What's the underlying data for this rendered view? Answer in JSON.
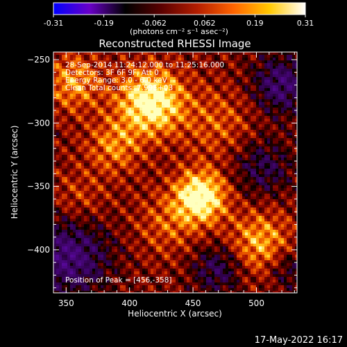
{
  "colorbar": {
    "ticks": [
      "-0.31",
      "-0.19",
      "-0.062",
      "0.062",
      "0.19",
      "0.31"
    ],
    "unit_label": "(photons cm⁻² s⁻¹ asec⁻²)",
    "stops": [
      "#0000ff",
      "#6a00c8",
      "#000000",
      "#5a0000",
      "#b41e00",
      "#ff6400",
      "#ffc800",
      "#ffffff"
    ]
  },
  "chart_data": {
    "type": "heatmap",
    "title": "Reconstructed RHESSI Image",
    "xlabel": "Heliocentric X (arcsec)",
    "ylabel": "Heliocentric Y (arcsec)",
    "xlim": [
      340,
      532
    ],
    "ylim": [
      -434,
      -244
    ],
    "x_ticks": [
      350,
      400,
      450,
      500
    ],
    "y_ticks": [
      -250,
      -300,
      -350,
      -400
    ],
    "value_range": [
      -0.31,
      0.31
    ],
    "peak": [
      456,
      -358
    ],
    "annotations": [
      "28-Sep-2014 11:24:12.000 to 11:25:16.000",
      "Detectors: 3F 6F 9F, Att 0",
      "Energy Range: 3.0 - 6.0 keV",
      "Clean     Total counts: 7.99E+03",
      "Position of Peak = [456,-358]"
    ]
  },
  "footer": {
    "timestamp": "17-May-2022 16:17"
  }
}
